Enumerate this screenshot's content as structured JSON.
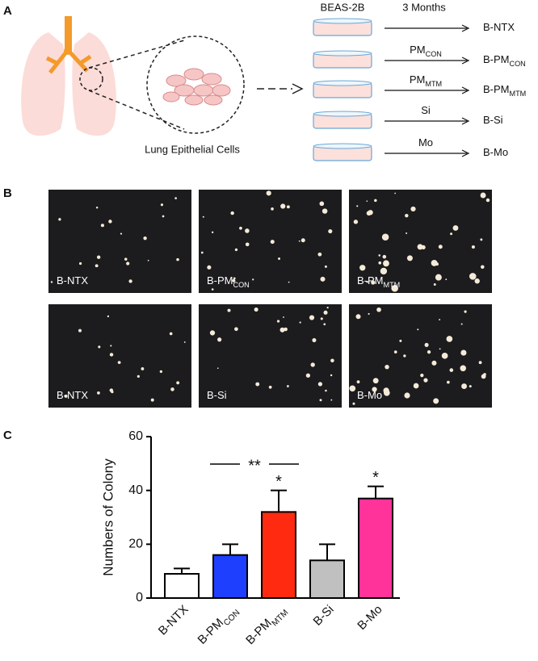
{
  "panel_a": {
    "label": "A",
    "cell_line": "BEAS-2B",
    "duration": "3 Months",
    "cells_caption": "Lung Epithelial Cells",
    "rows": [
      {
        "result": "B-NTX"
      },
      {
        "treatment": "PM",
        "treatment_sub": "CON",
        "result": "B-PM",
        "result_sub": "CON"
      },
      {
        "treatment": "PM",
        "treatment_sub": "MTM",
        "result": "B-PM",
        "result_sub": "MTM"
      },
      {
        "treatment": "Si",
        "result": "B-Si"
      },
      {
        "treatment": "Mo",
        "result": "B-Mo"
      }
    ]
  },
  "panel_b": {
    "label": "B",
    "images": [
      {
        "label": "B-NTX"
      },
      {
        "label": "B-PM",
        "sub": "CON"
      },
      {
        "label": "B-PM",
        "sub": "MTM"
      },
      {
        "label": "B-NTX"
      },
      {
        "label": "B-Si"
      },
      {
        "label": "B-Mo"
      }
    ]
  },
  "chart_data": {
    "type": "bar",
    "panel_label": "C",
    "y_label": "Numbers of Colony",
    "categories": [
      "B-NTX",
      "B-PM",
      "B-PM",
      "B-Si",
      "B-Mo"
    ],
    "category_subscripts": {
      "1": "CON",
      "2": "MTM"
    },
    "values": [
      9,
      16,
      32,
      14,
      37
    ],
    "errors": [
      2,
      4,
      8,
      6,
      4.5
    ],
    "colors": [
      "#ffffff",
      "#1f3fff",
      "#ff2a0f",
      "#c0c0c0",
      "#ff3399"
    ],
    "ylim": [
      0,
      60
    ],
    "yticks": [
      0,
      20,
      40,
      60
    ],
    "annotations": [
      {
        "text": "**",
        "from": 1,
        "to": 2
      },
      {
        "text": "*",
        "at": 2
      },
      {
        "text": "*",
        "at": 4
      }
    ]
  }
}
